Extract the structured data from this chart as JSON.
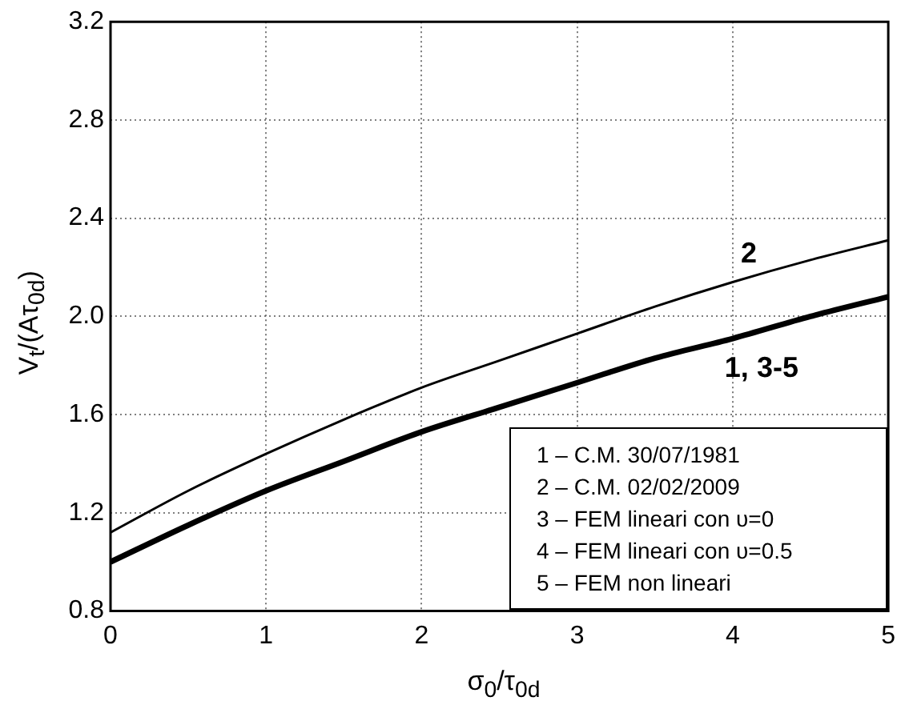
{
  "chart_data": {
    "type": "line",
    "xlabel": "σ$_{0}$/τ$_{0d}$",
    "ylabel": "V$_{t}$/(Aτ$_{0d}$)",
    "x": [
      0,
      0.5,
      1,
      1.5,
      2,
      2.5,
      3,
      3.5,
      4,
      4.5,
      5
    ],
    "series": [
      {
        "name": "2",
        "color": "#000000",
        "values": [
          1.12,
          1.29,
          1.44,
          1.58,
          1.71,
          1.82,
          1.93,
          2.04,
          2.14,
          2.23,
          2.31
        ]
      },
      {
        "name": "1, 3-5",
        "color": "#000000",
        "values": [
          1.0,
          1.15,
          1.29,
          1.41,
          1.53,
          1.63,
          1.73,
          1.83,
          1.91,
          2.0,
          2.08
        ]
      }
    ],
    "xlim": [
      0,
      5
    ],
    "xticks": [
      0,
      1,
      2,
      3,
      4,
      5
    ],
    "ylim": [
      0.8,
      3.2
    ],
    "yticks": [
      {
        "value": 0.8,
        "label": "0.8"
      },
      {
        "value": 1.2,
        "label": "1.2"
      },
      {
        "value": 1.6,
        "label": "1.6"
      },
      {
        "value": 2.0,
        "label": "2.0"
      },
      {
        "value": 2.4,
        "label": "2.4"
      },
      {
        "value": 2.8,
        "label": "2.8"
      },
      {
        "value": 3.2,
        "label": "3.2"
      }
    ],
    "grid": true,
    "legend": false,
    "marker": "none",
    "line_style": "solid",
    "annotations": [
      "1 – C.M. 30/07/1981",
      "2 – C.M. 02/02/2009",
      "3 – FEM lineari con υ=0",
      "4 – FEM lineari con υ=0.5",
      "5 – FEM non lineari"
    ]
  }
}
